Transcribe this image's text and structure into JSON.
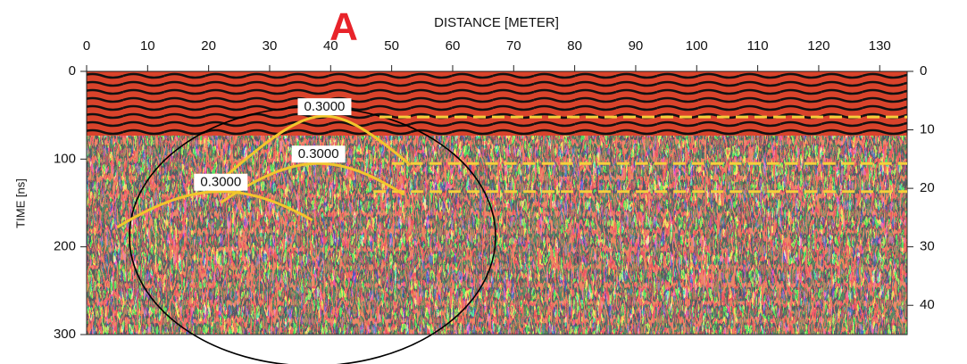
{
  "chart_data": {
    "type": "radargram",
    "title": "DISTANCE [METER]",
    "ylabel": "TIME [ns]",
    "annotation": "A",
    "xlim": [
      0,
      134.5
    ],
    "xticks": [
      0,
      10,
      20,
      30,
      40,
      50,
      60,
      70,
      80,
      90,
      100,
      110,
      120,
      130
    ],
    "ylim": [
      0,
      300
    ],
    "yticks": [
      0,
      100,
      200,
      300
    ],
    "y2lim": [
      0,
      45
    ],
    "y2ticks": [
      0,
      10,
      20,
      30,
      40
    ],
    "hyperbolas": {
      "x0": [
        39,
        38,
        22
      ],
      "t0": [
        51,
        105,
        137
      ],
      "x_from": [
        20,
        22,
        5
      ],
      "x_to": [
        53,
        52,
        37
      ],
      "values": [
        0.3,
        0.3,
        0.3
      ],
      "value_labels": [
        "0.3000",
        "0.3000",
        "0.3000"
      ],
      "color": "#f2c62c"
    },
    "reflectors": {
      "x_from": [
        48,
        50,
        47
      ],
      "values": [
        52,
        105,
        137
      ],
      "color": "#f5d03a"
    }
  }
}
